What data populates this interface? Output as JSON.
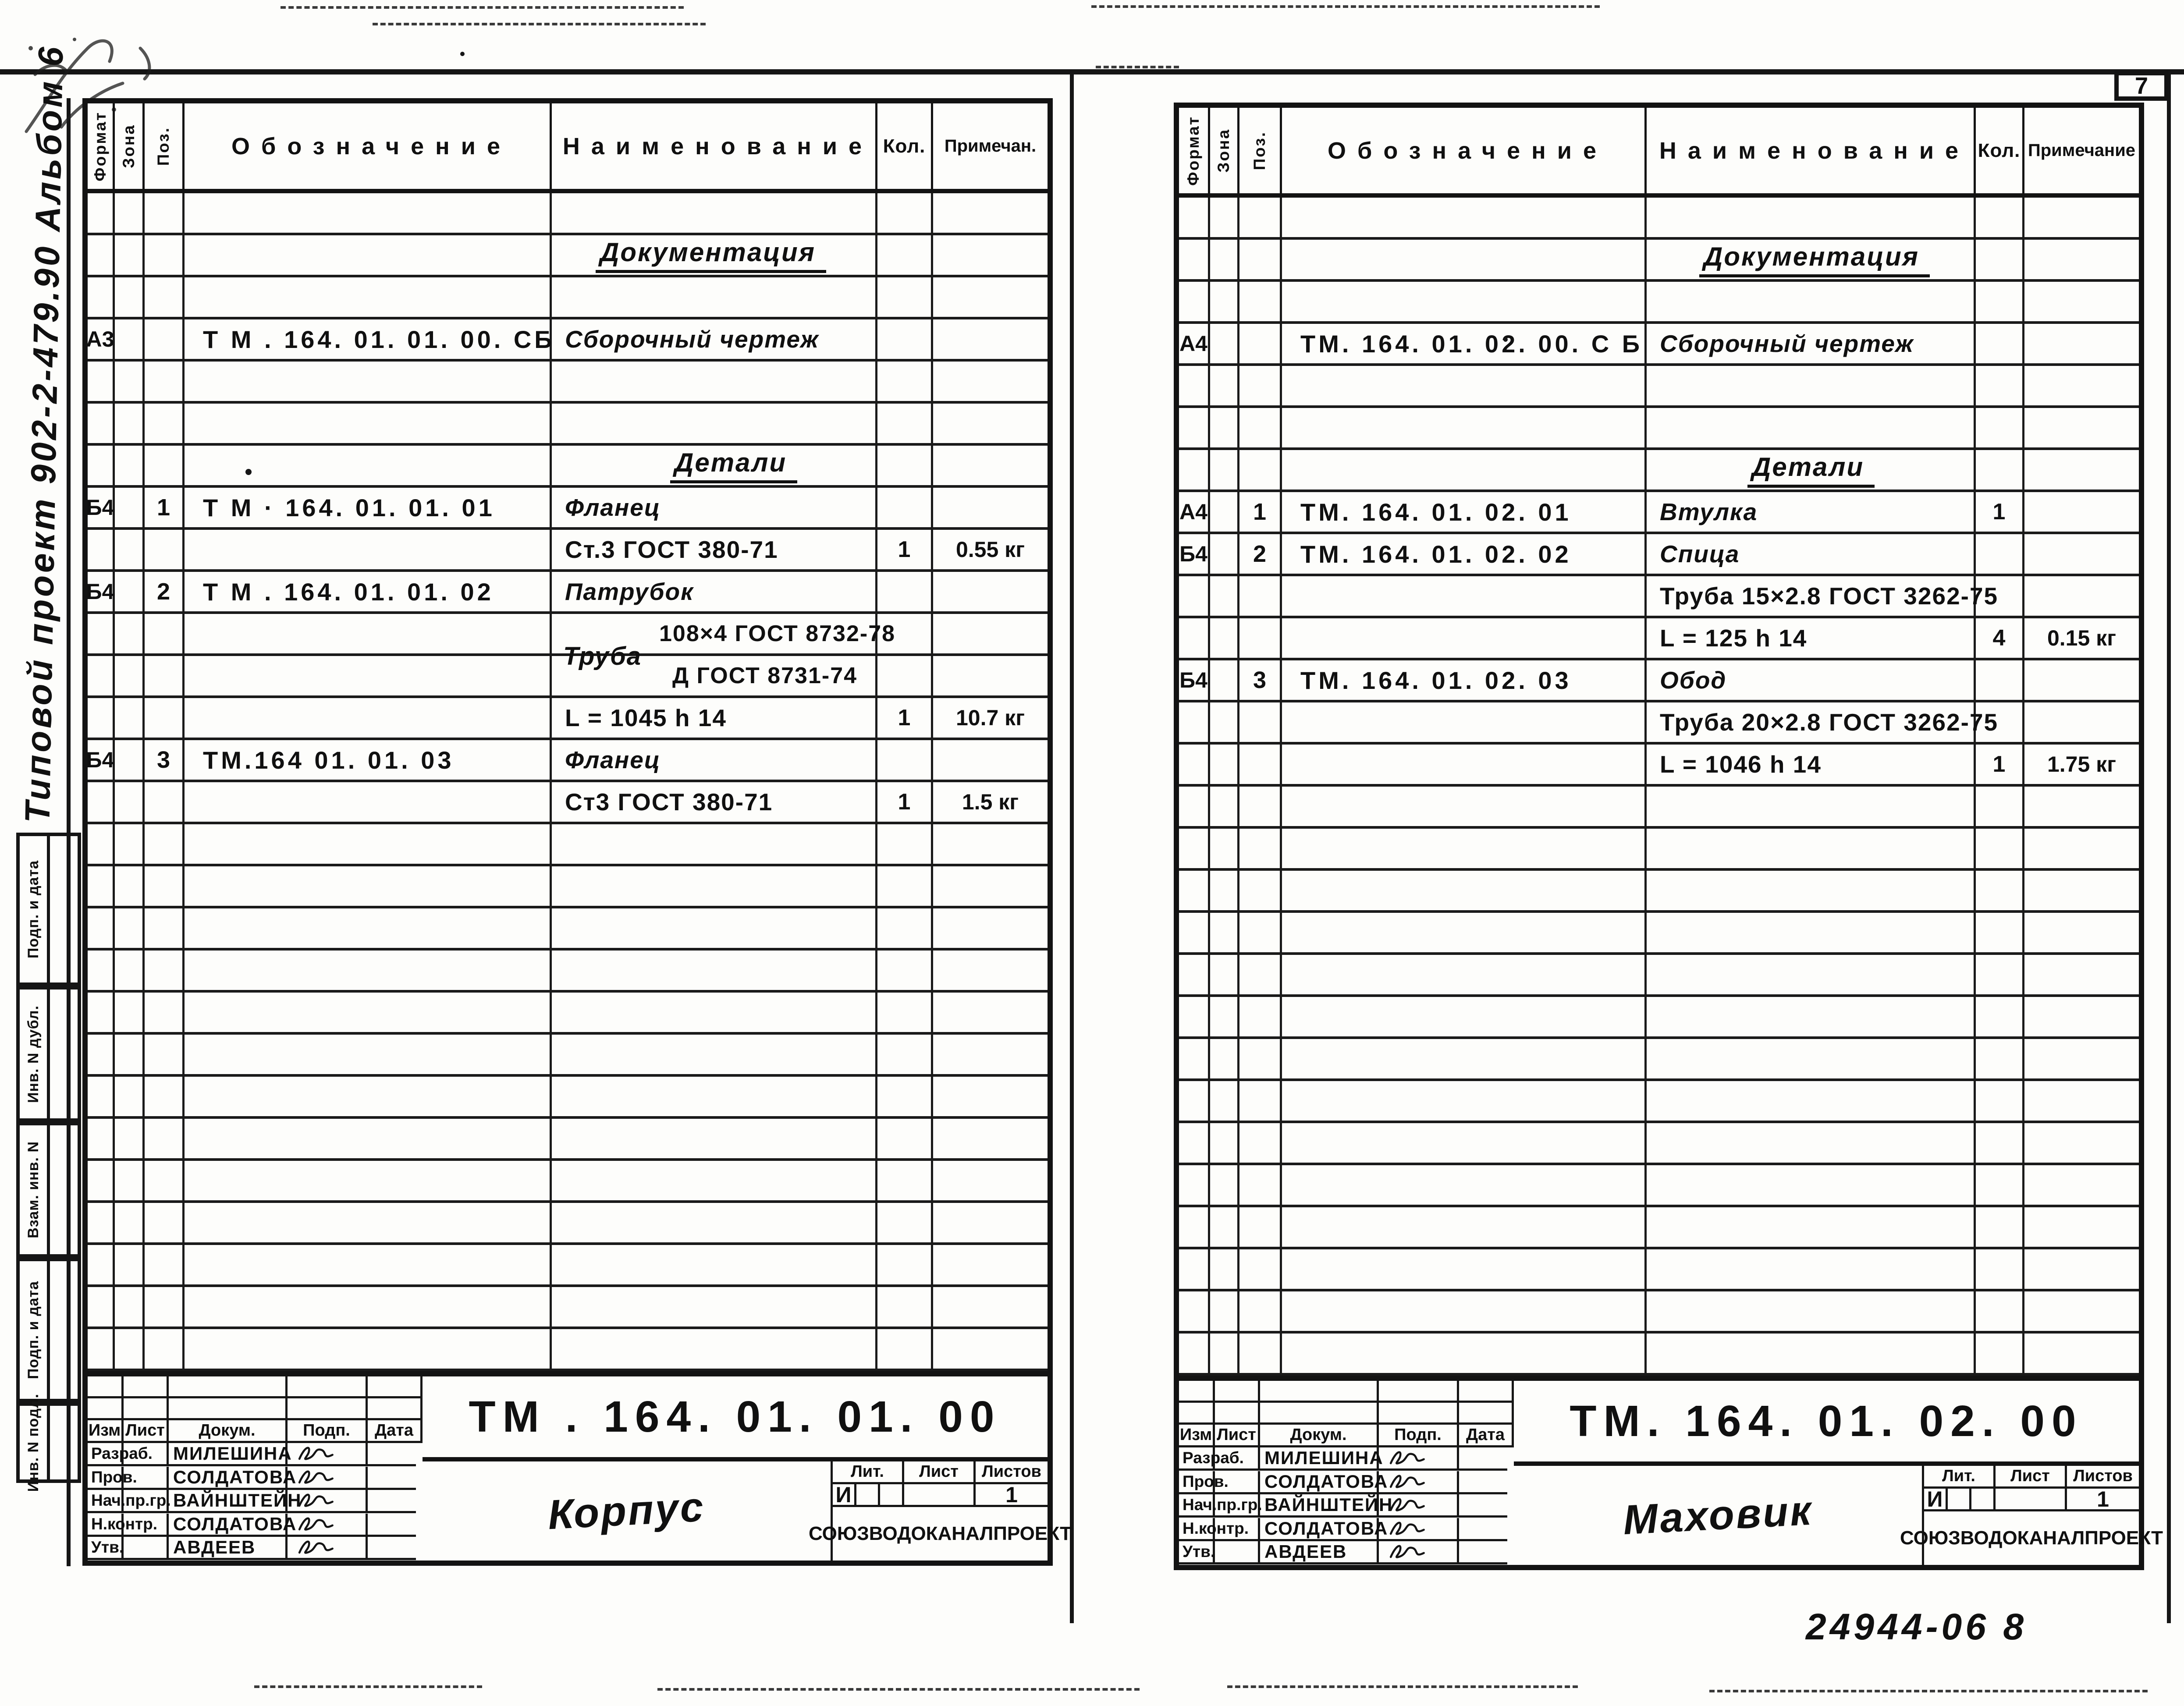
{
  "doc": {
    "page_number": "7",
    "footer_code": "24944-06  8",
    "margin_album_text": "Типовой  проект 902-2-479.90  Альбом 6",
    "stamp_labels": [
      "Подп. и дата",
      "Инв. N дубл.",
      "Взам. инв. N",
      "Подп. и дата",
      "Инв. N подл."
    ]
  },
  "columns": {
    "format": "Формат",
    "zone": "Зона",
    "pos": "Поз.",
    "designation": "Обозначение",
    "name": "Наименование",
    "qty": "Кол.",
    "note_left": "Примечан.",
    "note_right": "Примечание"
  },
  "titleblock_labels": {
    "izm": "Изм",
    "list": "Лист",
    "dokum": "Докум.",
    "podp": "Подп.",
    "data": "Дата",
    "lit": "Лит.",
    "list2": "Лист",
    "listov": "Листов",
    "org": "СОЮЗВОДОКАНАЛПРОЕКТ"
  },
  "left": {
    "rows": [
      {},
      {
        "n": "Документация",
        "cls": "sec",
        "ind": 70
      },
      {},
      {
        "f": "А3",
        "d": "Т М . 164. 01. 01. 00. СБ",
        "n": "Сборочный  чертеж",
        "cls": "cur"
      },
      {},
      {},
      {
        "n": "Детали",
        "cls": "sec",
        "ind": 240
      },
      {
        "f": "Б4",
        "p": "1",
        "d": "Т М · 164. 01. 01.  01",
        "n": "Фланец",
        "cls": "cur"
      },
      {
        "n": "Ст.3  ГОСТ  380-71",
        "q": "1",
        "r": "0.55 кг"
      },
      {
        "f": "Б4",
        "p": "2",
        "d": "Т М . 164. 01. 01. 02",
        "n": "Патрубок",
        "cls": "cur"
      },
      {
        "cls": "fracnum",
        "lbl": "Труба",
        "n": "108×4  ГОСТ 8732-78"
      },
      {
        "cls": "fracden",
        "n": "Д  ГОСТ  8731-74"
      },
      {
        "n": "L = 1045  h 14",
        "q": "1",
        "r": "10.7 кг"
      },
      {
        "f": "Б4",
        "p": "3",
        "d": "ТМ.164  01. 01. 03",
        "n": "Фланец",
        "cls": "cur"
      },
      {
        "n": "Ст3  ГОСТ  380-71",
        "q": "1",
        "r": "1.5 кг"
      },
      {},
      {},
      {},
      {},
      {},
      {},
      {},
      {},
      {},
      {},
      {},
      {},
      {}
    ],
    "titleblock": {
      "doc_no": "ТМ . 164. 01. 01. 00",
      "title": "Корпус",
      "names": [
        "Милешина",
        "Солдатова",
        "Вайнштейн",
        "Солдатова",
        "Авдеев"
      ],
      "lit_val": "И",
      "listov_val": "1"
    }
  },
  "right": {
    "rows": [
      {},
      {
        "n": "Документация",
        "cls": "sec",
        "ind": 90
      },
      {},
      {
        "f": "А4",
        "d": "ТМ. 164. 01. 02.  00. С Б",
        "n": "Сборочный  чертеж",
        "cls": "cur"
      },
      {},
      {},
      {
        "n": "Детали",
        "cls": "sec",
        "ind": 200
      },
      {
        "f": "А4",
        "p": "1",
        "d": "ТМ. 164. 01.  02.  01",
        "n": "Втулка",
        "cls": "cur",
        "q": "1"
      },
      {
        "f": "Б4",
        "p": "2",
        "d": "ТМ. 164. 01.  02.  02",
        "n": "Спица",
        "cls": "cur"
      },
      {
        "n": "Труба  15×2.8  ГОСТ 3262-75"
      },
      {
        "n": "L = 125   h 14",
        "q": "4",
        "r": "0.15 кг"
      },
      {
        "f": "Б4",
        "p": "3",
        "d": "ТМ. 164. 01.  02. 03",
        "n": "Обод",
        "cls": "cur"
      },
      {
        "n": "Труба  20×2.8  ГОСТ 3262-75"
      },
      {
        "n": "L = 1046  h 14",
        "q": "1",
        "r": "1.75 кг"
      },
      {},
      {},
      {},
      {},
      {},
      {},
      {},
      {},
      {},
      {},
      {},
      {},
      {},
      {}
    ],
    "titleblock": {
      "doc_no": "ТМ.  164. 01. 02. 00",
      "title": "Маховик",
      "names": [
        "Милешина",
        "Солдатова",
        "Вайнштейн",
        "Солдатова",
        "Авдеев"
      ],
      "lit_val": "И",
      "listov_val": "1"
    }
  }
}
